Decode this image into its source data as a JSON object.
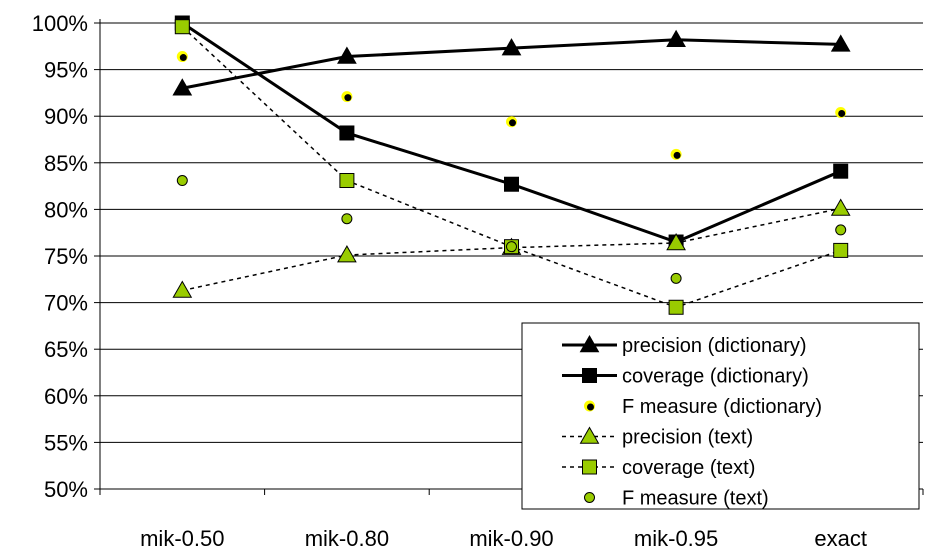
{
  "chart_data": {
    "type": "line",
    "categories": [
      "mik-0.50",
      "mik-0.80",
      "mik-0.90",
      "mik-0.95",
      "exact"
    ],
    "ylim": [
      50,
      100
    ],
    "yticks": [
      50,
      55,
      60,
      65,
      70,
      75,
      80,
      85,
      90,
      95,
      100
    ],
    "ytick_suffix": "%",
    "grid": "horizontal",
    "legend_position": "bottom-right",
    "series": [
      {
        "name": "precision (dictionary)",
        "values": [
          93.0,
          96.4,
          97.3,
          98.2,
          97.7
        ],
        "style": "solid-line",
        "marker": "triangle",
        "marker_color": "#000000"
      },
      {
        "name": "coverage (dictionary)",
        "values": [
          100.0,
          88.2,
          82.7,
          76.5,
          84.1
        ],
        "style": "solid-line",
        "marker": "square",
        "marker_color": "#000000"
      },
      {
        "name": "F measure (dictionary)",
        "values": [
          96.4,
          92.1,
          89.4,
          85.9,
          90.4
        ],
        "style": "markers-only",
        "marker": "circle",
        "marker_color": "#ffff00"
      },
      {
        "name": "precision (text)",
        "values": [
          71.3,
          75.1,
          75.9,
          76.4,
          80.1
        ],
        "style": "dashed-line",
        "marker": "triangle",
        "marker_color": "#99cc00"
      },
      {
        "name": "coverage (text)",
        "values": [
          99.6,
          83.1,
          76.0,
          69.5,
          75.6
        ],
        "style": "dashed-line",
        "marker": "square",
        "marker_color": "#99cc00"
      },
      {
        "name": "F measure (text)",
        "values": [
          83.1,
          79.0,
          76.0,
          72.6,
          77.8
        ],
        "style": "markers-only",
        "marker": "circle",
        "marker_color": "#99cc00"
      }
    ]
  }
}
